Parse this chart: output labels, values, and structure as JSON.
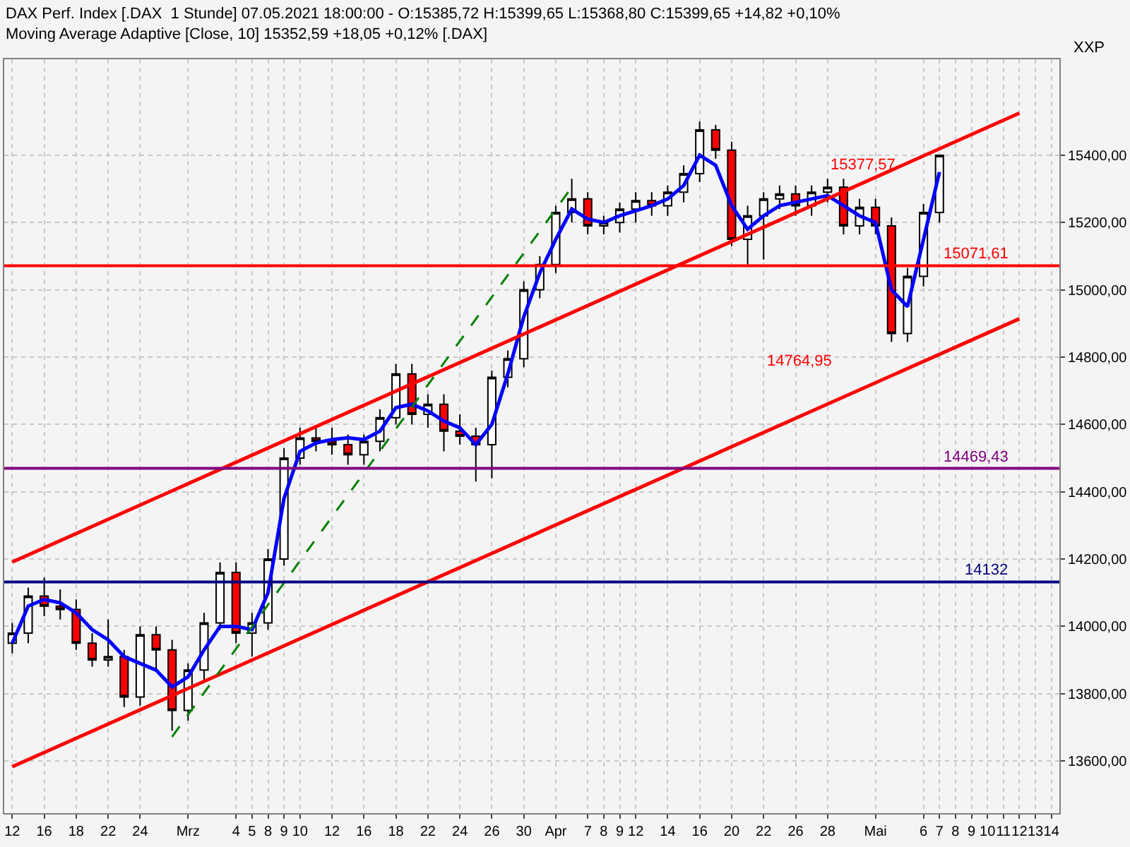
{
  "chart_data": {
    "type": "candlestick",
    "title": "DAX Perf. Index [.DAX  1 Stunde] 07.05.2021 18:00:00 - O:15385,72 H:15399,65 L:15368,80 C:15399,65 +14,82 +0,10%",
    "subtitle": "Moving Average Adaptive [Close, 10] 15352,59 +18,05 +0,12% [.DAX]",
    "categories": [
      "12",
      null,
      "16",
      null,
      "18",
      null,
      "22",
      null,
      "24",
      null,
      null,
      "Mrz",
      null,
      null,
      "4",
      "5",
      "8",
      "9",
      "10",
      null,
      "12",
      null,
      "16",
      null,
      "18",
      null,
      "22",
      null,
      "24",
      null,
      "26",
      null,
      "30",
      null,
      "Apr",
      null,
      "7",
      "8",
      "9",
      "12",
      null,
      "14",
      null,
      "16",
      null,
      "20",
      null,
      "22",
      null,
      "26",
      null,
      "28",
      null,
      null,
      "Mai",
      null,
      null,
      "6",
      "7",
      "8",
      "9",
      "10",
      "11",
      "12",
      "13",
      "14"
    ],
    "ohlc": [
      [
        13950,
        14010,
        13920,
        13980
      ],
      [
        13980,
        14115,
        13950,
        14090
      ],
      [
        14090,
        14145,
        14030,
        14060
      ],
      [
        14060,
        14110,
        14020,
        14050
      ],
      [
        14050,
        14080,
        13930,
        13950
      ],
      [
        13950,
        13980,
        13880,
        13900
      ],
      [
        13900,
        14020,
        13880,
        13910
      ],
      [
        13910,
        13930,
        13760,
        13790
      ],
      [
        13790,
        14000,
        13765,
        13975
      ],
      [
        13975,
        14000,
        13875,
        13930
      ],
      [
        13930,
        13960,
        13690,
        13750
      ],
      [
        13750,
        13890,
        13720,
        13870
      ],
      [
        13870,
        14040,
        13840,
        14010
      ],
      [
        14010,
        14190,
        13990,
        14160
      ],
      [
        14160,
        14190,
        13950,
        13980
      ],
      [
        13980,
        14040,
        13910,
        14010
      ],
      [
        14010,
        14230,
        13990,
        14200
      ],
      [
        14200,
        14530,
        14180,
        14500
      ],
      [
        14500,
        14590,
        14480,
        14560
      ],
      [
        14560,
        14590,
        14520,
        14550
      ],
      [
        14550,
        14590,
        14510,
        14540
      ],
      [
        14540,
        14570,
        14480,
        14510
      ],
      [
        14510,
        14570,
        14480,
        14550
      ],
      [
        14550,
        14645,
        14520,
        14620
      ],
      [
        14620,
        14780,
        14600,
        14750
      ],
      [
        14750,
        14780,
        14600,
        14630
      ],
      [
        14630,
        14690,
        14590,
        14660
      ],
      [
        14660,
        14690,
        14520,
        14580
      ],
      [
        14580,
        14630,
        14540,
        14565
      ],
      [
        14565,
        14590,
        14430,
        14540
      ],
      [
        14540,
        14760,
        14440,
        14740
      ],
      [
        14740,
        14820,
        14710,
        14795
      ],
      [
        14795,
        15025,
        14770,
        15000
      ],
      [
        15000,
        15100,
        14975,
        15075
      ],
      [
        15075,
        15250,
        15050,
        15230
      ],
      [
        15230,
        15330,
        15200,
        15270
      ],
      [
        15270,
        15290,
        15165,
        15190
      ],
      [
        15190,
        15220,
        15165,
        15200
      ],
      [
        15200,
        15260,
        15170,
        15240
      ],
      [
        15240,
        15290,
        15200,
        15265
      ],
      [
        15265,
        15290,
        15220,
        15250
      ],
      [
        15250,
        15310,
        15220,
        15290
      ],
      [
        15290,
        15370,
        15260,
        15345
      ],
      [
        15345,
        15500,
        15320,
        15475
      ],
      [
        15475,
        15490,
        15390,
        15415
      ],
      [
        15415,
        15440,
        15130,
        15150
      ],
      [
        15150,
        15250,
        15075,
        15220
      ],
      [
        15220,
        15290,
        15090,
        15270
      ],
      [
        15270,
        15310,
        15240,
        15285
      ],
      [
        15285,
        15310,
        15220,
        15250
      ],
      [
        15250,
        15310,
        15220,
        15290
      ],
      [
        15290,
        15330,
        15260,
        15305
      ],
      [
        15305,
        15330,
        15165,
        15190
      ],
      [
        15190,
        15270,
        15165,
        15245
      ],
      [
        15245,
        15270,
        15165,
        15190
      ],
      [
        15190,
        15215,
        14845,
        14870
      ],
      [
        14870,
        15065,
        14845,
        15040
      ],
      [
        15040,
        15255,
        15010,
        15230
      ],
      [
        15230,
        15400,
        15200,
        15400
      ],
      null,
      null,
      null,
      null,
      null,
      null,
      null
    ],
    "series": [
      {
        "type": "line",
        "color": "#0000ff",
        "line_style": "solid",
        "values": [
          13950,
          14060,
          14080,
          14070,
          14040,
          13990,
          13960,
          13910,
          13890,
          13870,
          13820,
          13850,
          13930,
          14000,
          14000,
          13990,
          14100,
          14380,
          14520,
          14545,
          14555,
          14560,
          14555,
          14580,
          14650,
          14660,
          14640,
          14610,
          14590,
          14540,
          14600,
          14750,
          14920,
          15050,
          15150,
          15240,
          15210,
          15200,
          15220,
          15235,
          15250,
          15270,
          15310,
          15400,
          15370,
          15250,
          15180,
          15220,
          15250,
          15260,
          15270,
          15280,
          15250,
          15220,
          15200,
          15000,
          14950,
          15150,
          15350,
          null,
          null,
          null,
          null,
          null,
          null,
          null
        ]
      },
      {
        "type": "line",
        "color": "#ff0000",
        "line_style": "solid",
        "values": [
          14191,
          null,
          null,
          null,
          null,
          null,
          null,
          null,
          null,
          null,
          null,
          null,
          null,
          null,
          null,
          null,
          null,
          null,
          null,
          null,
          null,
          null,
          null,
          null,
          null,
          null,
          null,
          null,
          null,
          null,
          null,
          null,
          null,
          null,
          null,
          null,
          null,
          null,
          null,
          null,
          null,
          null,
          null,
          null,
          null,
          null,
          null,
          null,
          null,
          null,
          null,
          null,
          null,
          null,
          null,
          null,
          null,
          null,
          null,
          null,
          null,
          null,
          null,
          15525,
          null,
          null
        ]
      },
      {
        "type": "line",
        "color": "#ff0000",
        "line_style": "solid",
        "values": [
          13583,
          null,
          null,
          null,
          null,
          null,
          null,
          null,
          null,
          null,
          null,
          null,
          null,
          null,
          null,
          null,
          null,
          null,
          null,
          null,
          null,
          null,
          null,
          null,
          null,
          null,
          null,
          null,
          null,
          null,
          null,
          null,
          null,
          null,
          null,
          null,
          null,
          null,
          null,
          null,
          null,
          null,
          null,
          null,
          null,
          null,
          null,
          null,
          null,
          null,
          null,
          null,
          null,
          null,
          null,
          null,
          null,
          null,
          null,
          null,
          null,
          null,
          null,
          14914,
          null,
          null
        ]
      },
      {
        "type": "line",
        "color": "#008000",
        "line_style": "dashed",
        "values": [
          null,
          null,
          null,
          null,
          null,
          null,
          null,
          null,
          null,
          null,
          13672,
          null,
          null,
          null,
          null,
          null,
          null,
          null,
          null,
          null,
          null,
          null,
          null,
          null,
          null,
          null,
          null,
          null,
          null,
          null,
          null,
          null,
          null,
          null,
          null,
          15305,
          null,
          null,
          null,
          null,
          null,
          null,
          null,
          null,
          null,
          null,
          null,
          null,
          null,
          null,
          null,
          null,
          null,
          null,
          null,
          null,
          null,
          null,
          null,
          null,
          null,
          null,
          null,
          null,
          null,
          null
        ]
      }
    ],
    "ref_lines": [
      {
        "axis": "y",
        "value": 15071.61,
        "label": "15071,61",
        "color": "#ff0000"
      },
      {
        "axis": "y",
        "value": 14469.43,
        "label": "14469,43",
        "color": "#800080"
      },
      {
        "axis": "y",
        "value": 14132,
        "label": "14132",
        "color": "#000080"
      }
    ],
    "annotations": [
      "XXP",
      "15377,57",
      "14764,95"
    ],
    "ylim": [
      13445,
      15685
    ],
    "yticks": [
      {
        "value": 13600,
        "label": "13600,00"
      },
      {
        "value": 13800,
        "label": "13800,00"
      },
      {
        "value": 14000,
        "label": "14000,00"
      },
      {
        "value": 14200,
        "label": "14200,00"
      },
      {
        "value": 14400,
        "label": "14400,00"
      },
      {
        "value": 14600,
        "label": "14600,00"
      },
      {
        "value": 14800,
        "label": "14800,00"
      },
      {
        "value": 15000,
        "label": "15000,00"
      },
      {
        "value": 15200,
        "label": "15200,00"
      },
      {
        "value": 15400,
        "label": "15400,00"
      }
    ],
    "grid": true
  }
}
